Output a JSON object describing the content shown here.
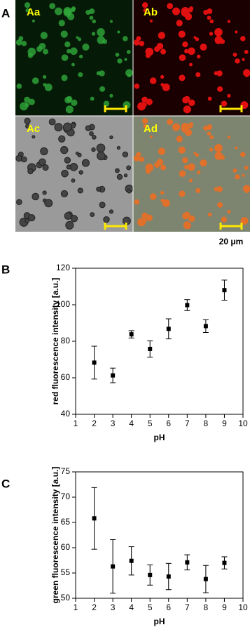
{
  "panel_a": {
    "label": "A",
    "images": [
      "Aa",
      "Ab",
      "Ac",
      "Ad"
    ],
    "scale_bar": "20 μm"
  },
  "chart_data": [
    {
      "type": "scatter",
      "panel_label": "B",
      "x_label": "pH",
      "y_label": "red fluorescence intensity [a.u.]",
      "series": [
        {
          "color": "#000000",
          "x": [
            2,
            3,
            4,
            5,
            6,
            7,
            8,
            9
          ],
          "values": [
            68.3,
            61.3,
            83.8,
            75.8,
            86.8,
            99.8,
            88.3,
            108
          ],
          "errors": [
            9,
            4,
            2,
            4.5,
            5.5,
            3,
            3.5,
            5.5
          ]
        }
      ],
      "xlim": [
        1,
        10
      ],
      "xticks": [
        1,
        2,
        3,
        4,
        5,
        6,
        7,
        8,
        9,
        10
      ],
      "ylim": [
        40,
        120
      ],
      "yticks": [
        40,
        60,
        80,
        100,
        120
      ]
    },
    {
      "type": "scatter",
      "panel_label": "C",
      "x_label": "pH",
      "y_label": "green fluorescence intensity [a.u.]",
      "series": [
        {
          "color": "#000000",
          "x": [
            2,
            3,
            4,
            5,
            6,
            7,
            8,
            9
          ],
          "values": [
            65.8,
            56.3,
            57.4,
            54.6,
            54.3,
            57.1,
            53.8,
            57
          ],
          "errors": [
            6.1,
            5.3,
            2.8,
            2,
            2.6,
            1.5,
            2.7,
            1.2
          ]
        }
      ],
      "xlim": [
        1,
        10
      ],
      "xticks": [
        1,
        2,
        3,
        4,
        5,
        6,
        7,
        8,
        9,
        10
      ],
      "ylim": [
        50,
        75
      ],
      "yticks": [
        50,
        55,
        60,
        65,
        70,
        75
      ]
    }
  ]
}
